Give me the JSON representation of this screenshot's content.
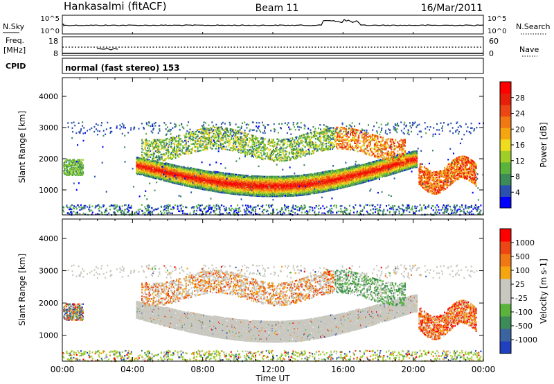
{
  "header": {
    "station": "Hankasalmi (fitACF)",
    "beam": "Beam 11",
    "date": "16/Mar/2011"
  },
  "noise_panel": {
    "left_label": "N.Sky",
    "left_ticks": [
      "10^5",
      "10^0"
    ],
    "right_ticks": [
      "10^5",
      "10^0"
    ],
    "right_label": "N.Search"
  },
  "freq_panel": {
    "left_label_1": "Freq.",
    "left_label_2": "[MHz]",
    "left_ticks": [
      "18",
      "8"
    ],
    "right_ticks": [
      "60",
      "0"
    ],
    "right_label": "Nave",
    "cpid_label": "CPID",
    "cpid_text": "normal (fast stereo) 153"
  },
  "chart_data": [
    {
      "type": "heatmap",
      "quantity": "Power",
      "ylabel": "Slant Range [km]",
      "ylim": [
        200,
        4600
      ],
      "yticks": [
        "1000",
        "2000",
        "3000",
        "4000"
      ],
      "xlim": [
        "00:00",
        "24:00"
      ],
      "xticks": [
        "00:00",
        "04:00",
        "08:00",
        "12:00",
        "16:00",
        "20:00",
        "00:00"
      ],
      "colorbar_label": "Power [dB]",
      "colorbar_ticks": [
        "28",
        "24",
        "20",
        "16",
        "12",
        "8",
        "4"
      ],
      "colorbar_colors": [
        "#0000ff",
        "#2a50b0",
        "#3c8c5a",
        "#5ab43c",
        "#a0cd28",
        "#f0dc1e",
        "#f5a50f",
        "#f07814",
        "#eb4614",
        "#e61e0a",
        "#ff0000"
      ]
    },
    {
      "type": "heatmap",
      "quantity": "Velocity",
      "ylabel": "Slant Range [km]",
      "ylim": [
        200,
        4600
      ],
      "yticks": [
        "1000",
        "2000",
        "3000",
        "4000"
      ],
      "xlim": [
        "00:00",
        "24:00"
      ],
      "xticks": [
        "00:00",
        "04:00",
        "08:00",
        "12:00",
        "16:00",
        "20:00",
        "00:00"
      ],
      "xlabel": "Time UT",
      "colorbar_label": "Velocity [m s-1]",
      "colorbar_ticks": [
        "1000",
        "500",
        "100",
        "25",
        "-25",
        "-100",
        "-500",
        "-1000"
      ],
      "colorbar_colors": [
        "#2040c0",
        "#3c64a0",
        "#3c8c5a",
        "#5ab43c",
        "#c8c8c0",
        "#c8c8c0",
        "#f5a50f",
        "#f07814",
        "#eb4614",
        "#ff0000"
      ]
    }
  ]
}
